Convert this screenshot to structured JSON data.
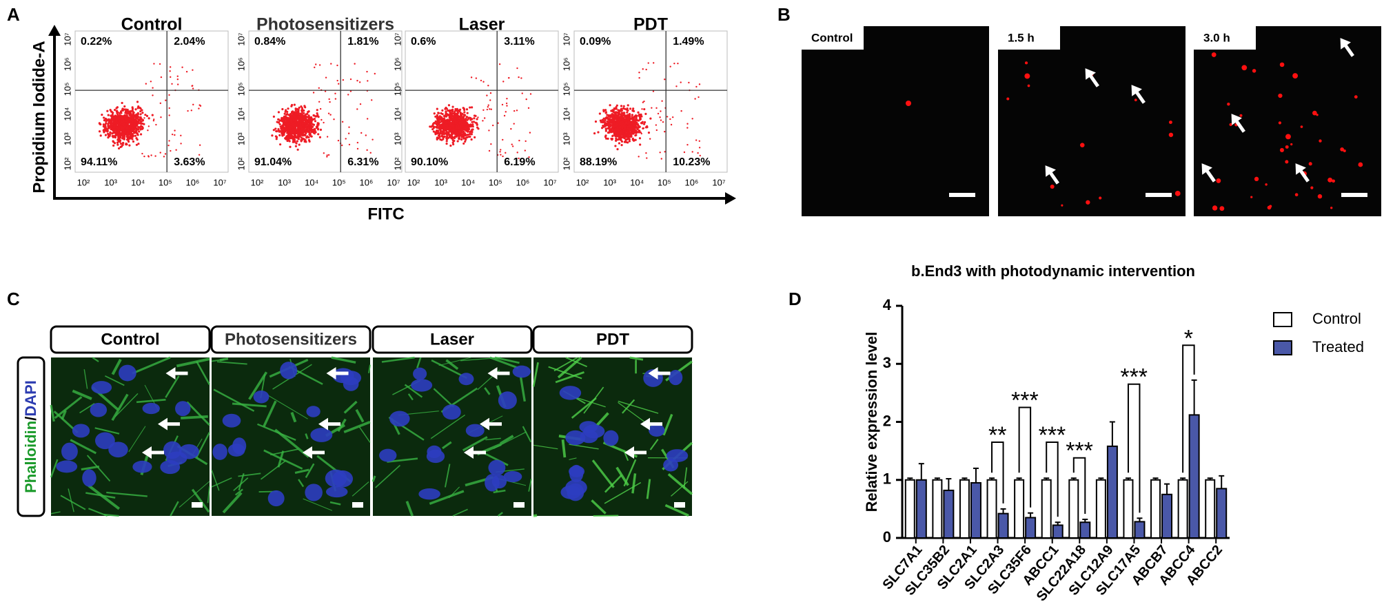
{
  "panel_a": {
    "letter": "A",
    "y_label": "Propidium Iodide-A",
    "x_label": "FITC",
    "tick_labels": [
      "10²",
      "10³",
      "10⁴",
      "10⁵",
      "10⁶",
      "10⁷"
    ],
    "plots": [
      {
        "title": "Control",
        "quadrants": [
          "0.22%",
          "2.04%",
          "94.11%",
          "3.63%"
        ]
      },
      {
        "title": "Photosensitizers",
        "quadrants": [
          "0.84%",
          "1.81%",
          "91.04%",
          "6.31%"
        ]
      },
      {
        "title": "Laser",
        "quadrants": [
          "0.6%",
          "3.11%",
          "90.10%",
          "6.19%"
        ]
      },
      {
        "title": "PDT",
        "quadrants": [
          "0.09%",
          "1.49%",
          "88.19%",
          "10.23%"
        ]
      }
    ]
  },
  "panel_b": {
    "letter": "B",
    "images": [
      "Control",
      "1.5 h",
      "3.0 h"
    ]
  },
  "panel_c": {
    "letter": "C",
    "stain_label_green": "Phalloidin",
    "stain_label_sep": "/",
    "stain_label_blue": "DAPI",
    "images": [
      "Control",
      "Photosensitizers",
      "Laser",
      "PDT"
    ]
  },
  "panel_d": {
    "letter": "D",
    "chart_data": {
      "type": "bar",
      "title": "b.End3 with photodynamic intervention",
      "y_label": "Relative expression level",
      "categories": [
        "SLC7A1",
        "SLC35B2",
        "SLC2A1",
        "SLC2A3",
        "SLC35F6",
        "ABCC1",
        "SLC22A18",
        "SLC12A9",
        "SLC17A5",
        "ABCB7",
        "ABCC4",
        "ABCC2"
      ],
      "series": [
        {
          "name": "Control",
          "color": "#ffffff",
          "values": [
            1.0,
            1.0,
            1.0,
            1.0,
            1.0,
            1.0,
            1.0,
            1.0,
            1.0,
            1.0,
            1.0,
            1.0
          ],
          "errors": [
            0.03,
            0.03,
            0.03,
            0.03,
            0.03,
            0.03,
            0.03,
            0.03,
            0.03,
            0.03,
            0.03,
            0.03
          ]
        },
        {
          "name": "Treated",
          "color": "#4a58a8",
          "values": [
            1.0,
            0.82,
            0.95,
            0.42,
            0.35,
            0.22,
            0.27,
            1.58,
            0.28,
            0.75,
            2.12,
            0.85
          ],
          "errors": [
            0.28,
            0.2,
            0.25,
            0.08,
            0.08,
            0.05,
            0.05,
            0.42,
            0.06,
            0.18,
            0.6,
            0.22
          ]
        }
      ],
      "significance": [
        {
          "category": 3,
          "y": 1.65,
          "label": "**"
        },
        {
          "category": 4,
          "y": 2.25,
          "label": "***"
        },
        {
          "category": 5,
          "y": 1.65,
          "label": "***"
        },
        {
          "category": 6,
          "y": 1.38,
          "label": "***"
        },
        {
          "category": 8,
          "y": 2.65,
          "label": "***"
        },
        {
          "category": 10,
          "y": 3.32,
          "label": "*"
        }
      ],
      "ylim": [
        0,
        4
      ],
      "yticks": [
        0,
        1,
        2,
        3,
        4
      ],
      "legend": "top-right"
    }
  }
}
